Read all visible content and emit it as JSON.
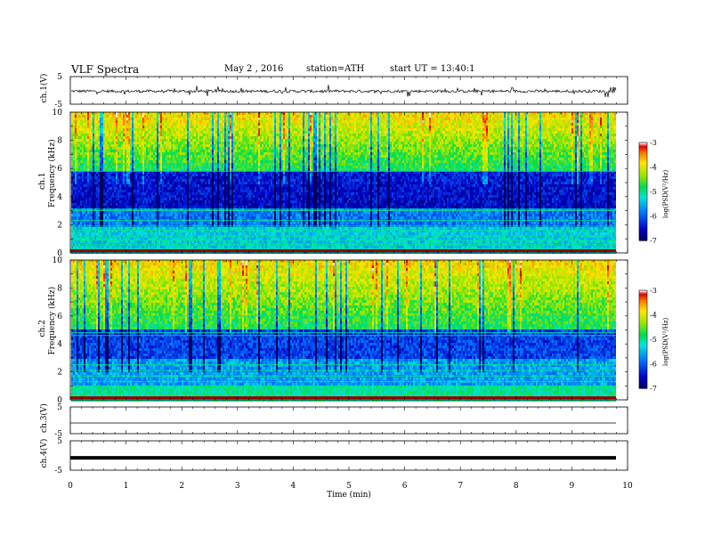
{
  "header": {
    "title": "VLF Spectra",
    "date": "May 2 , 2016",
    "station": "station=ATH",
    "start": "start UT = 13:40:1"
  },
  "chart_data": [
    {
      "type": "line",
      "panel": "ch1_waveform",
      "ylabel": "ch.1(V)",
      "ylim": [
        -5,
        5
      ],
      "yticks": [
        "5",
        "-5"
      ],
      "note": "noisy waveform around approximately -0.3 V with spikes"
    },
    {
      "type": "heatmap",
      "panel": "ch1_spectrogram",
      "ylabel_channel": "ch.1",
      "ylabel": "Frequency (kHz)",
      "ylim": [
        0,
        10
      ],
      "yticks": [
        "0",
        "2",
        "4",
        "6",
        "8",
        "10"
      ],
      "colorbar": {
        "label": "log(PSD(V²/Hz)",
        "range": [
          -7,
          -3
        ],
        "ticks": [
          "-3",
          "-4",
          "-5",
          "-6",
          "-7"
        ]
      }
    },
    {
      "type": "heatmap",
      "panel": "ch2_spectrogram",
      "ylabel_channel": "ch.2",
      "ylabel": "Frequency (kHz)",
      "ylim": [
        0,
        10
      ],
      "yticks": [
        "0",
        "2",
        "4",
        "6",
        "8",
        "10"
      ],
      "colorbar": {
        "label": "log(PSD(V²/Hz)",
        "range": [
          -7,
          -3
        ],
        "ticks": [
          "-3",
          "-4",
          "-5",
          "-6",
          "-7"
        ]
      }
    },
    {
      "type": "line",
      "panel": "ch3_waveform",
      "ylabel": "ch.3(V)",
      "ylim": [
        -5,
        5
      ],
      "yticks": [
        "5",
        "-5"
      ],
      "note": "flat line near -1 V"
    },
    {
      "type": "line",
      "panel": "ch4_waveform",
      "ylabel": "ch.4(V)",
      "ylim": [
        -5,
        5
      ],
      "yticks": [
        "5",
        "-5"
      ],
      "note": "thick flat band near -0.8 V"
    },
    {
      "type": "axis",
      "xlabel": "Time (min)",
      "xlim": [
        0,
        10
      ],
      "xticks": [
        "0",
        "1",
        "2",
        "3",
        "4",
        "5",
        "6",
        "7",
        "8",
        "9",
        "10"
      ]
    }
  ]
}
